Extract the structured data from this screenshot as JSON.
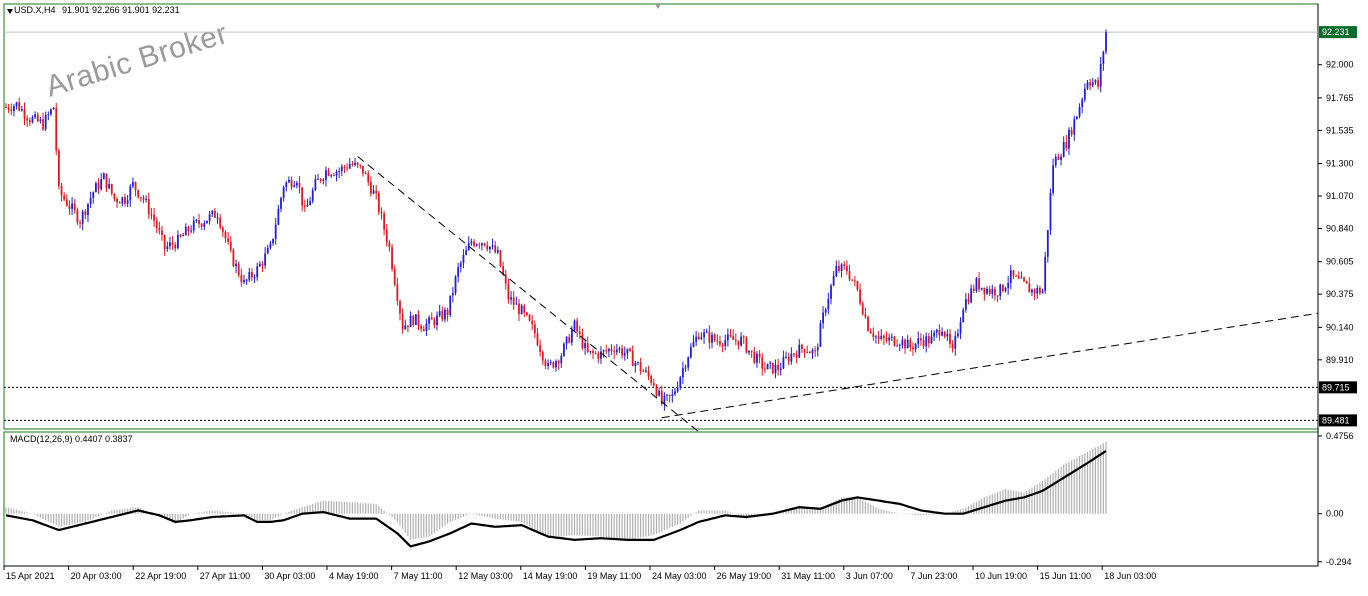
{
  "header": {
    "symbol": "USD.X,H4",
    "ohlc": "91.901 92.266 91.901 92.231"
  },
  "watermark": "Arabic Broker",
  "macd": {
    "title": "MACD(12,26,9) 0.4407 0.3837"
  },
  "colors": {
    "bull": "#1f1fd6",
    "bear": "#e0181c",
    "frame": "#1a7a1a",
    "histogram": "#b0b0b0",
    "signal": "#000000"
  },
  "chart_data": [
    {
      "type": "candlestick",
      "title": "USD.X,H4",
      "y_ticks": [
        "92.000",
        "91.765",
        "91.535",
        "91.300",
        "91.070",
        "90.840",
        "90.605",
        "90.375",
        "90.140",
        "89.910"
      ],
      "x_ticks": [
        "15 Apr 2021",
        "20 Apr 03:00",
        "22 Apr 19:00",
        "27 Apr 11:00",
        "30 Apr 03:00",
        "4 May 19:00",
        "7 May 11:00",
        "12 May 03:00",
        "14 May 19:00",
        "19 May 11:00",
        "24 May 03:00",
        "26 May 19:00",
        "31 May 11:00",
        "3 Jun 07:00",
        "7 Jun 23:00",
        "10 Jun 19:00",
        "15 Jun 11:00",
        "18 Jun 03:00"
      ],
      "ylim": [
        89.42,
        92.43
      ],
      "price_labels": [
        "92.231",
        "89.715",
        "89.481"
      ],
      "horizontal_levels": [
        92.231,
        89.715,
        89.481
      ],
      "close_path": [
        [
          0,
          91.7
        ],
        [
          4,
          91.72
        ],
        [
          9,
          91.62
        ],
        [
          14,
          91.58
        ],
        [
          18,
          91.7
        ],
        [
          20,
          91.1
        ],
        [
          24,
          91.0
        ],
        [
          28,
          90.9
        ],
        [
          33,
          91.1
        ],
        [
          37,
          91.2
        ],
        [
          41,
          91.05
        ],
        [
          45,
          91.05
        ],
        [
          48,
          91.15
        ],
        [
          52,
          91.05
        ],
        [
          56,
          90.9
        ],
        [
          60,
          90.7
        ],
        [
          65,
          90.75
        ],
        [
          70,
          90.85
        ],
        [
          75,
          90.9
        ],
        [
          80,
          90.95
        ],
        [
          85,
          90.65
        ],
        [
          90,
          90.45
        ],
        [
          95,
          90.55
        ],
        [
          100,
          90.7
        ],
        [
          105,
          91.15
        ],
        [
          110,
          91.2
        ],
        [
          113,
          90.95
        ],
        [
          117,
          91.15
        ],
        [
          121,
          91.25
        ],
        [
          126,
          91.25
        ],
        [
          130,
          91.3
        ],
        [
          135,
          91.25
        ],
        [
          140,
          91.05
        ],
        [
          145,
          90.7
        ],
        [
          150,
          90.15
        ],
        [
          154,
          90.2
        ],
        [
          158,
          90.15
        ],
        [
          163,
          90.2
        ],
        [
          167,
          90.25
        ],
        [
          171,
          90.55
        ],
        [
          176,
          90.75
        ],
        [
          181,
          90.75
        ],
        [
          186,
          90.65
        ],
        [
          190,
          90.35
        ],
        [
          195,
          90.25
        ],
        [
          200,
          90.1
        ],
        [
          205,
          89.85
        ],
        [
          210,
          89.95
        ],
        [
          215,
          90.15
        ],
        [
          220,
          89.95
        ],
        [
          225,
          89.95
        ],
        [
          230,
          90.0
        ],
        [
          235,
          89.95
        ],
        [
          240,
          89.85
        ],
        [
          245,
          89.75
        ],
        [
          248,
          89.6
        ],
        [
          252,
          89.65
        ],
        [
          255,
          89.8
        ],
        [
          258,
          89.95
        ],
        [
          262,
          90.1
        ],
        [
          268,
          90.05
        ],
        [
          273,
          90.05
        ],
        [
          278,
          90.05
        ],
        [
          282,
          89.95
        ],
        [
          287,
          89.85
        ],
        [
          292,
          89.85
        ],
        [
          297,
          89.95
        ],
        [
          302,
          90.0
        ],
        [
          306,
          89.95
        ],
        [
          310,
          90.3
        ],
        [
          314,
          90.55
        ],
        [
          318,
          90.55
        ],
        [
          322,
          90.4
        ],
        [
          326,
          90.15
        ],
        [
          330,
          90.05
        ],
        [
          334,
          90.05
        ],
        [
          338,
          90.05
        ],
        [
          342,
          90.0
        ],
        [
          346,
          90.05
        ],
        [
          350,
          90.05
        ],
        [
          354,
          90.15
        ],
        [
          358,
          89.95
        ],
        [
          362,
          90.3
        ],
        [
          367,
          90.45
        ],
        [
          372,
          90.4
        ],
        [
          376,
          90.4
        ],
        [
          380,
          90.5
        ],
        [
          384,
          90.45
        ],
        [
          388,
          90.4
        ],
        [
          392,
          90.4
        ],
        [
          396,
          91.3
        ],
        [
          401,
          91.45
        ],
        [
          405,
          91.65
        ],
        [
          409,
          91.9
        ],
        [
          413,
          91.85
        ],
        [
          416,
          92.231
        ]
      ],
      "macd_line_path": [
        [
          0,
          0.04
        ],
        [
          10,
          0.0
        ],
        [
          20,
          -0.08
        ],
        [
          30,
          -0.05
        ],
        [
          40,
          0.02
        ],
        [
          50,
          0.04
        ],
        [
          58,
          -0.02
        ],
        [
          64,
          -0.06
        ],
        [
          70,
          0.0
        ],
        [
          78,
          0.02
        ],
        [
          90,
          0.0
        ],
        [
          95,
          -0.04
        ],
        [
          100,
          -0.04
        ],
        [
          105,
          0.0
        ],
        [
          112,
          0.04
        ],
        [
          120,
          0.08
        ],
        [
          130,
          0.07
        ],
        [
          140,
          0.06
        ],
        [
          148,
          -0.05
        ],
        [
          153,
          -0.16
        ],
        [
          160,
          -0.14
        ],
        [
          168,
          -0.05
        ],
        [
          176,
          0.0
        ],
        [
          185,
          -0.03
        ],
        [
          195,
          -0.05
        ],
        [
          205,
          -0.15
        ],
        [
          215,
          -0.13
        ],
        [
          225,
          -0.14
        ],
        [
          235,
          -0.16
        ],
        [
          245,
          -0.13
        ],
        [
          255,
          -0.06
        ],
        [
          262,
          0.02
        ],
        [
          272,
          0.02
        ],
        [
          280,
          -0.03
        ],
        [
          290,
          0.0
        ],
        [
          300,
          0.05
        ],
        [
          308,
          0.03
        ],
        [
          316,
          0.1
        ],
        [
          322,
          0.1
        ],
        [
          330,
          0.03
        ],
        [
          338,
          0.0
        ],
        [
          346,
          -0.01
        ],
        [
          355,
          0.0
        ],
        [
          362,
          0.03
        ],
        [
          370,
          0.1
        ],
        [
          378,
          0.15
        ],
        [
          385,
          0.13
        ],
        [
          392,
          0.2
        ],
        [
          400,
          0.3
        ],
        [
          408,
          0.37
        ],
        [
          416,
          0.44
        ]
      ],
      "macd_signal_path": [
        [
          0,
          -0.01
        ],
        [
          10,
          -0.04
        ],
        [
          20,
          -0.1
        ],
        [
          30,
          -0.06
        ],
        [
          40,
          -0.02
        ],
        [
          50,
          0.02
        ],
        [
          58,
          -0.01
        ],
        [
          64,
          -0.05
        ],
        [
          70,
          -0.04
        ],
        [
          78,
          -0.02
        ],
        [
          90,
          -0.01
        ],
        [
          95,
          -0.05
        ],
        [
          100,
          -0.05
        ],
        [
          105,
          -0.04
        ],
        [
          112,
          0.0
        ],
        [
          120,
          0.01
        ],
        [
          130,
          -0.03
        ],
        [
          140,
          -0.03
        ],
        [
          148,
          -0.12
        ],
        [
          153,
          -0.2
        ],
        [
          160,
          -0.17
        ],
        [
          168,
          -0.12
        ],
        [
          176,
          -0.06
        ],
        [
          185,
          -0.08
        ],
        [
          195,
          -0.07
        ],
        [
          205,
          -0.14
        ],
        [
          215,
          -0.16
        ],
        [
          225,
          -0.15
        ],
        [
          235,
          -0.16
        ],
        [
          245,
          -0.16
        ],
        [
          255,
          -0.1
        ],
        [
          262,
          -0.05
        ],
        [
          272,
          -0.01
        ],
        [
          280,
          -0.02
        ],
        [
          290,
          0.0
        ],
        [
          300,
          0.04
        ],
        [
          308,
          0.03
        ],
        [
          316,
          0.08
        ],
        [
          322,
          0.1
        ],
        [
          330,
          0.08
        ],
        [
          338,
          0.06
        ],
        [
          346,
          0.02
        ],
        [
          355,
          0.0
        ],
        [
          362,
          0.0
        ],
        [
          370,
          0.04
        ],
        [
          378,
          0.08
        ],
        [
          385,
          0.1
        ],
        [
          392,
          0.14
        ],
        [
          400,
          0.22
        ],
        [
          408,
          0.3
        ],
        [
          416,
          0.3837
        ]
      ],
      "macd_ticks": [
        "0.4756",
        "0.00",
        "-0.294"
      ],
      "macd_ylim": [
        -0.32,
        0.5
      ]
    }
  ]
}
